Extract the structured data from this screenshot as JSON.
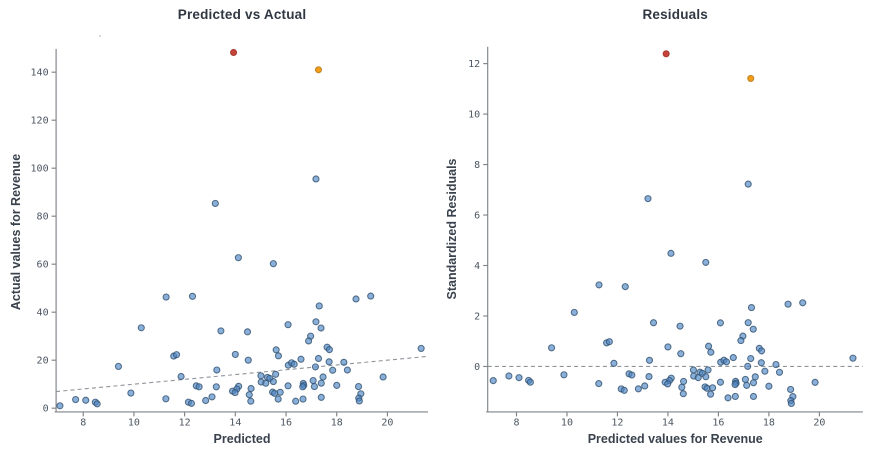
{
  "figure": {
    "background": "#ffffff",
    "point_colors": {
      "normal": "#4e86c4",
      "outlier_max": "#c43a2f",
      "outlier_second": "#f09c13"
    },
    "artifact_dot": {
      "note": "faint speck below left title"
    }
  },
  "chart_data": [
    {
      "type": "scatter",
      "title": "Predicted vs Actual",
      "xlabel": "Predicted",
      "ylabel": "Actual values for Revenue",
      "xlim": [
        6.93,
        21.6
      ],
      "ylim": [
        -1.55,
        149.7
      ],
      "xticks": [
        8,
        10,
        12,
        14,
        16,
        18,
        20
      ],
      "yticks": [
        0,
        20,
        40,
        60,
        80,
        100,
        120,
        140
      ],
      "grid": false,
      "reference_line": {
        "kind": "identity",
        "style": "dashed"
      },
      "series": [
        {
          "name": "observations",
          "color": "#4e86c4",
          "points": [
            [
              7.08,
              1.0
            ],
            [
              7.7,
              3.6
            ],
            [
              8.1,
              3.3
            ],
            [
              8.48,
              2.5
            ],
            [
              8.55,
              1.8
            ],
            [
              9.39,
              17.4
            ],
            [
              9.88,
              6.3
            ],
            [
              10.29,
              33.5
            ],
            [
              11.27,
              46.3
            ],
            [
              11.26,
              3.9
            ],
            [
              11.57,
              21.7
            ],
            [
              11.68,
              22.3
            ],
            [
              11.86,
              13.2
            ],
            [
              12.15,
              2.5
            ],
            [
              12.27,
              2.0
            ],
            [
              12.31,
              46.6
            ],
            [
              12.46,
              9.3
            ],
            [
              12.57,
              8.9
            ],
            [
              12.83,
              3.2
            ],
            [
              13.08,
              4.7
            ],
            [
              13.21,
              85.3
            ],
            [
              13.25,
              8.9
            ],
            [
              13.27,
              15.9
            ],
            [
              13.43,
              32.2
            ],
            [
              14.0,
              22.4
            ],
            [
              14.12,
              62.7
            ],
            [
              14.48,
              31.8
            ],
            [
              14.51,
              20.0
            ],
            [
              14.13,
              9.1
            ],
            [
              14.06,
              8.0
            ],
            [
              13.89,
              7.1
            ],
            [
              13.99,
              6.5
            ],
            [
              14.62,
              8.2
            ],
            [
              14.55,
              5.6
            ],
            [
              14.61,
              2.9
            ],
            [
              15.01,
              13.5
            ],
            [
              15.27,
              12.8
            ],
            [
              15.36,
              12.4
            ],
            [
              15.59,
              14.1
            ],
            [
              15.02,
              10.9
            ],
            [
              15.2,
              10.4
            ],
            [
              15.5,
              11.1
            ],
            [
              15.47,
              6.7
            ],
            [
              15.55,
              6.2
            ],
            [
              15.77,
              6.6
            ],
            [
              15.69,
              3.8
            ],
            [
              15.5,
              60.2
            ],
            [
              15.61,
              24.3
            ],
            [
              15.7,
              21.8
            ],
            [
              16.08,
              34.8
            ],
            [
              16.09,
              17.9
            ],
            [
              16.22,
              18.9
            ],
            [
              16.32,
              18.3
            ],
            [
              16.08,
              9.3
            ],
            [
              16.38,
              2.9
            ],
            [
              16.67,
              3.8
            ],
            [
              16.59,
              20.4
            ],
            [
              16.68,
              10.3
            ],
            [
              16.7,
              9.5
            ],
            [
              16.66,
              8.9
            ],
            [
              16.97,
              30.0
            ],
            [
              16.89,
              28.0
            ],
            [
              17.18,
              36.0
            ],
            [
              17.38,
              33.4
            ],
            [
              17.07,
              11.5
            ],
            [
              17.12,
              9.0
            ],
            [
              17.16,
              17.2
            ],
            [
              17.18,
              95.5
            ],
            [
              17.31,
              42.6
            ],
            [
              17.28,
              20.7
            ],
            [
              17.39,
              10.4
            ],
            [
              17.46,
              13.0
            ],
            [
              17.39,
              4.5
            ],
            [
              17.62,
              25.4
            ],
            [
              17.71,
              24.4
            ],
            [
              17.7,
              19.3
            ],
            [
              17.84,
              15.8
            ],
            [
              18.0,
              9.5
            ],
            [
              18.28,
              19.1
            ],
            [
              18.42,
              15.9
            ],
            [
              18.76,
              45.5
            ],
            [
              19.34,
              46.7
            ],
            [
              18.86,
              9.0
            ],
            [
              18.95,
              6.0
            ],
            [
              18.87,
              4.2
            ],
            [
              18.89,
              3.0
            ],
            [
              19.83,
              13.0
            ],
            [
              21.33,
              24.9
            ]
          ]
        },
        {
          "name": "highlighted-outlier-red",
          "color": "#c43a2f",
          "points": [
            [
              13.93,
              148.2
            ]
          ]
        },
        {
          "name": "highlighted-outlier-orange",
          "color": "#f09c13",
          "points": [
            [
              17.28,
              141.0
            ]
          ]
        }
      ]
    },
    {
      "type": "scatter",
      "title": "Residuals",
      "xlabel": "Predicted values for Revenue",
      "ylabel": "Standardized Residuals",
      "xlim": [
        6.86,
        21.72
      ],
      "ylim": [
        -1.8,
        12.67
      ],
      "xticks": [
        8,
        10,
        12,
        14,
        16,
        18,
        20
      ],
      "yticks": [
        0,
        2,
        4,
        6,
        8,
        10,
        12
      ],
      "grid": false,
      "reference_line": {
        "kind": "horizontal",
        "y": 0,
        "style": "dashed"
      },
      "series": [
        {
          "name": "observations",
          "color": "#4e86c4",
          "points": [
            [
              7.08,
              -0.561
            ],
            [
              7.7,
              -0.378
            ],
            [
              8.1,
              -0.443
            ],
            [
              8.48,
              -0.552
            ],
            [
              8.55,
              -0.623
            ],
            [
              9.39,
              0.739
            ],
            [
              9.88,
              -0.33
            ],
            [
              10.29,
              2.141
            ],
            [
              11.27,
              3.232
            ],
            [
              11.26,
              -0.679
            ],
            [
              11.57,
              0.935
            ],
            [
              11.68,
              0.98
            ],
            [
              11.86,
              0.124
            ],
            [
              12.15,
              -0.89
            ],
            [
              12.27,
              -0.947
            ],
            [
              12.31,
              3.163
            ],
            [
              12.46,
              -0.292
            ],
            [
              12.57,
              -0.339
            ],
            [
              12.83,
              -0.888
            ],
            [
              13.08,
              -0.773
            ],
            [
              13.21,
              6.65
            ],
            [
              13.25,
              -0.401
            ],
            [
              13.27,
              0.243
            ],
            [
              13.43,
              1.732
            ],
            [
              14.0,
              0.775
            ],
            [
              14.12,
              4.482
            ],
            [
              14.48,
              1.598
            ],
            [
              14.51,
              0.506
            ],
            [
              14.13,
              -0.464
            ],
            [
              14.06,
              -0.559
            ],
            [
              13.89,
              -0.626
            ],
            [
              13.99,
              -0.691
            ],
            [
              14.62,
              -0.592
            ],
            [
              14.55,
              -0.826
            ],
            [
              14.61,
              -1.08
            ],
            [
              15.01,
              -0.139
            ],
            [
              15.27,
              -0.228
            ],
            [
              15.36,
              -0.273
            ],
            [
              15.59,
              -0.137
            ],
            [
              15.02,
              -0.38
            ],
            [
              15.2,
              -0.443
            ],
            [
              15.5,
              -0.406
            ],
            [
              15.47,
              -0.809
            ],
            [
              15.55,
              -0.863
            ],
            [
              15.77,
              -0.846
            ],
            [
              15.69,
              -1.097
            ],
            [
              15.5,
              4.124
            ],
            [
              15.61,
              0.802
            ],
            [
              15.7,
              0.563
            ],
            [
              16.08,
              1.727
            ],
            [
              16.09,
              0.167
            ],
            [
              16.22,
              0.247
            ],
            [
              16.32,
              0.183
            ],
            [
              16.08,
              -0.625
            ],
            [
              16.38,
              -1.244
            ],
            [
              16.67,
              -1.187
            ],
            [
              16.59,
              0.351
            ],
            [
              16.68,
              -0.589
            ],
            [
              16.7,
              -0.664
            ],
            [
              16.66,
              -0.716
            ],
            [
              16.97,
              1.202
            ],
            [
              16.89,
              1.025
            ],
            [
              17.18,
              1.736
            ],
            [
              17.38,
              1.478
            ],
            [
              17.07,
              -0.514
            ],
            [
              17.12,
              -0.749
            ],
            [
              17.16,
              0.004
            ],
            [
              17.18,
              7.225
            ],
            [
              17.31,
              2.333
            ],
            [
              17.28,
              0.315
            ],
            [
              17.39,
              -0.645
            ],
            [
              17.46,
              -0.411
            ],
            [
              17.39,
              -1.189
            ],
            [
              17.62,
              0.718
            ],
            [
              17.71,
              0.617
            ],
            [
              17.7,
              0.148
            ],
            [
              17.84,
              -0.188
            ],
            [
              18.0,
              -0.784
            ],
            [
              18.28,
              0.076
            ],
            [
              18.42,
              -0.232
            ],
            [
              18.76,
              2.467
            ],
            [
              19.34,
              2.524
            ],
            [
              18.86,
              -0.91
            ],
            [
              18.95,
              -1.195
            ],
            [
              18.87,
              -1.353
            ],
            [
              18.89,
              -1.466
            ],
            [
              19.83,
              -0.63
            ],
            [
              21.33,
              0.329
            ]
          ]
        },
        {
          "name": "highlighted-outlier-red",
          "color": "#c43a2f",
          "points": [
            [
              13.93,
              12.387
            ]
          ]
        },
        {
          "name": "highlighted-outlier-orange",
          "color": "#f09c13",
          "points": [
            [
              17.28,
              11.413
            ]
          ]
        }
      ]
    }
  ]
}
